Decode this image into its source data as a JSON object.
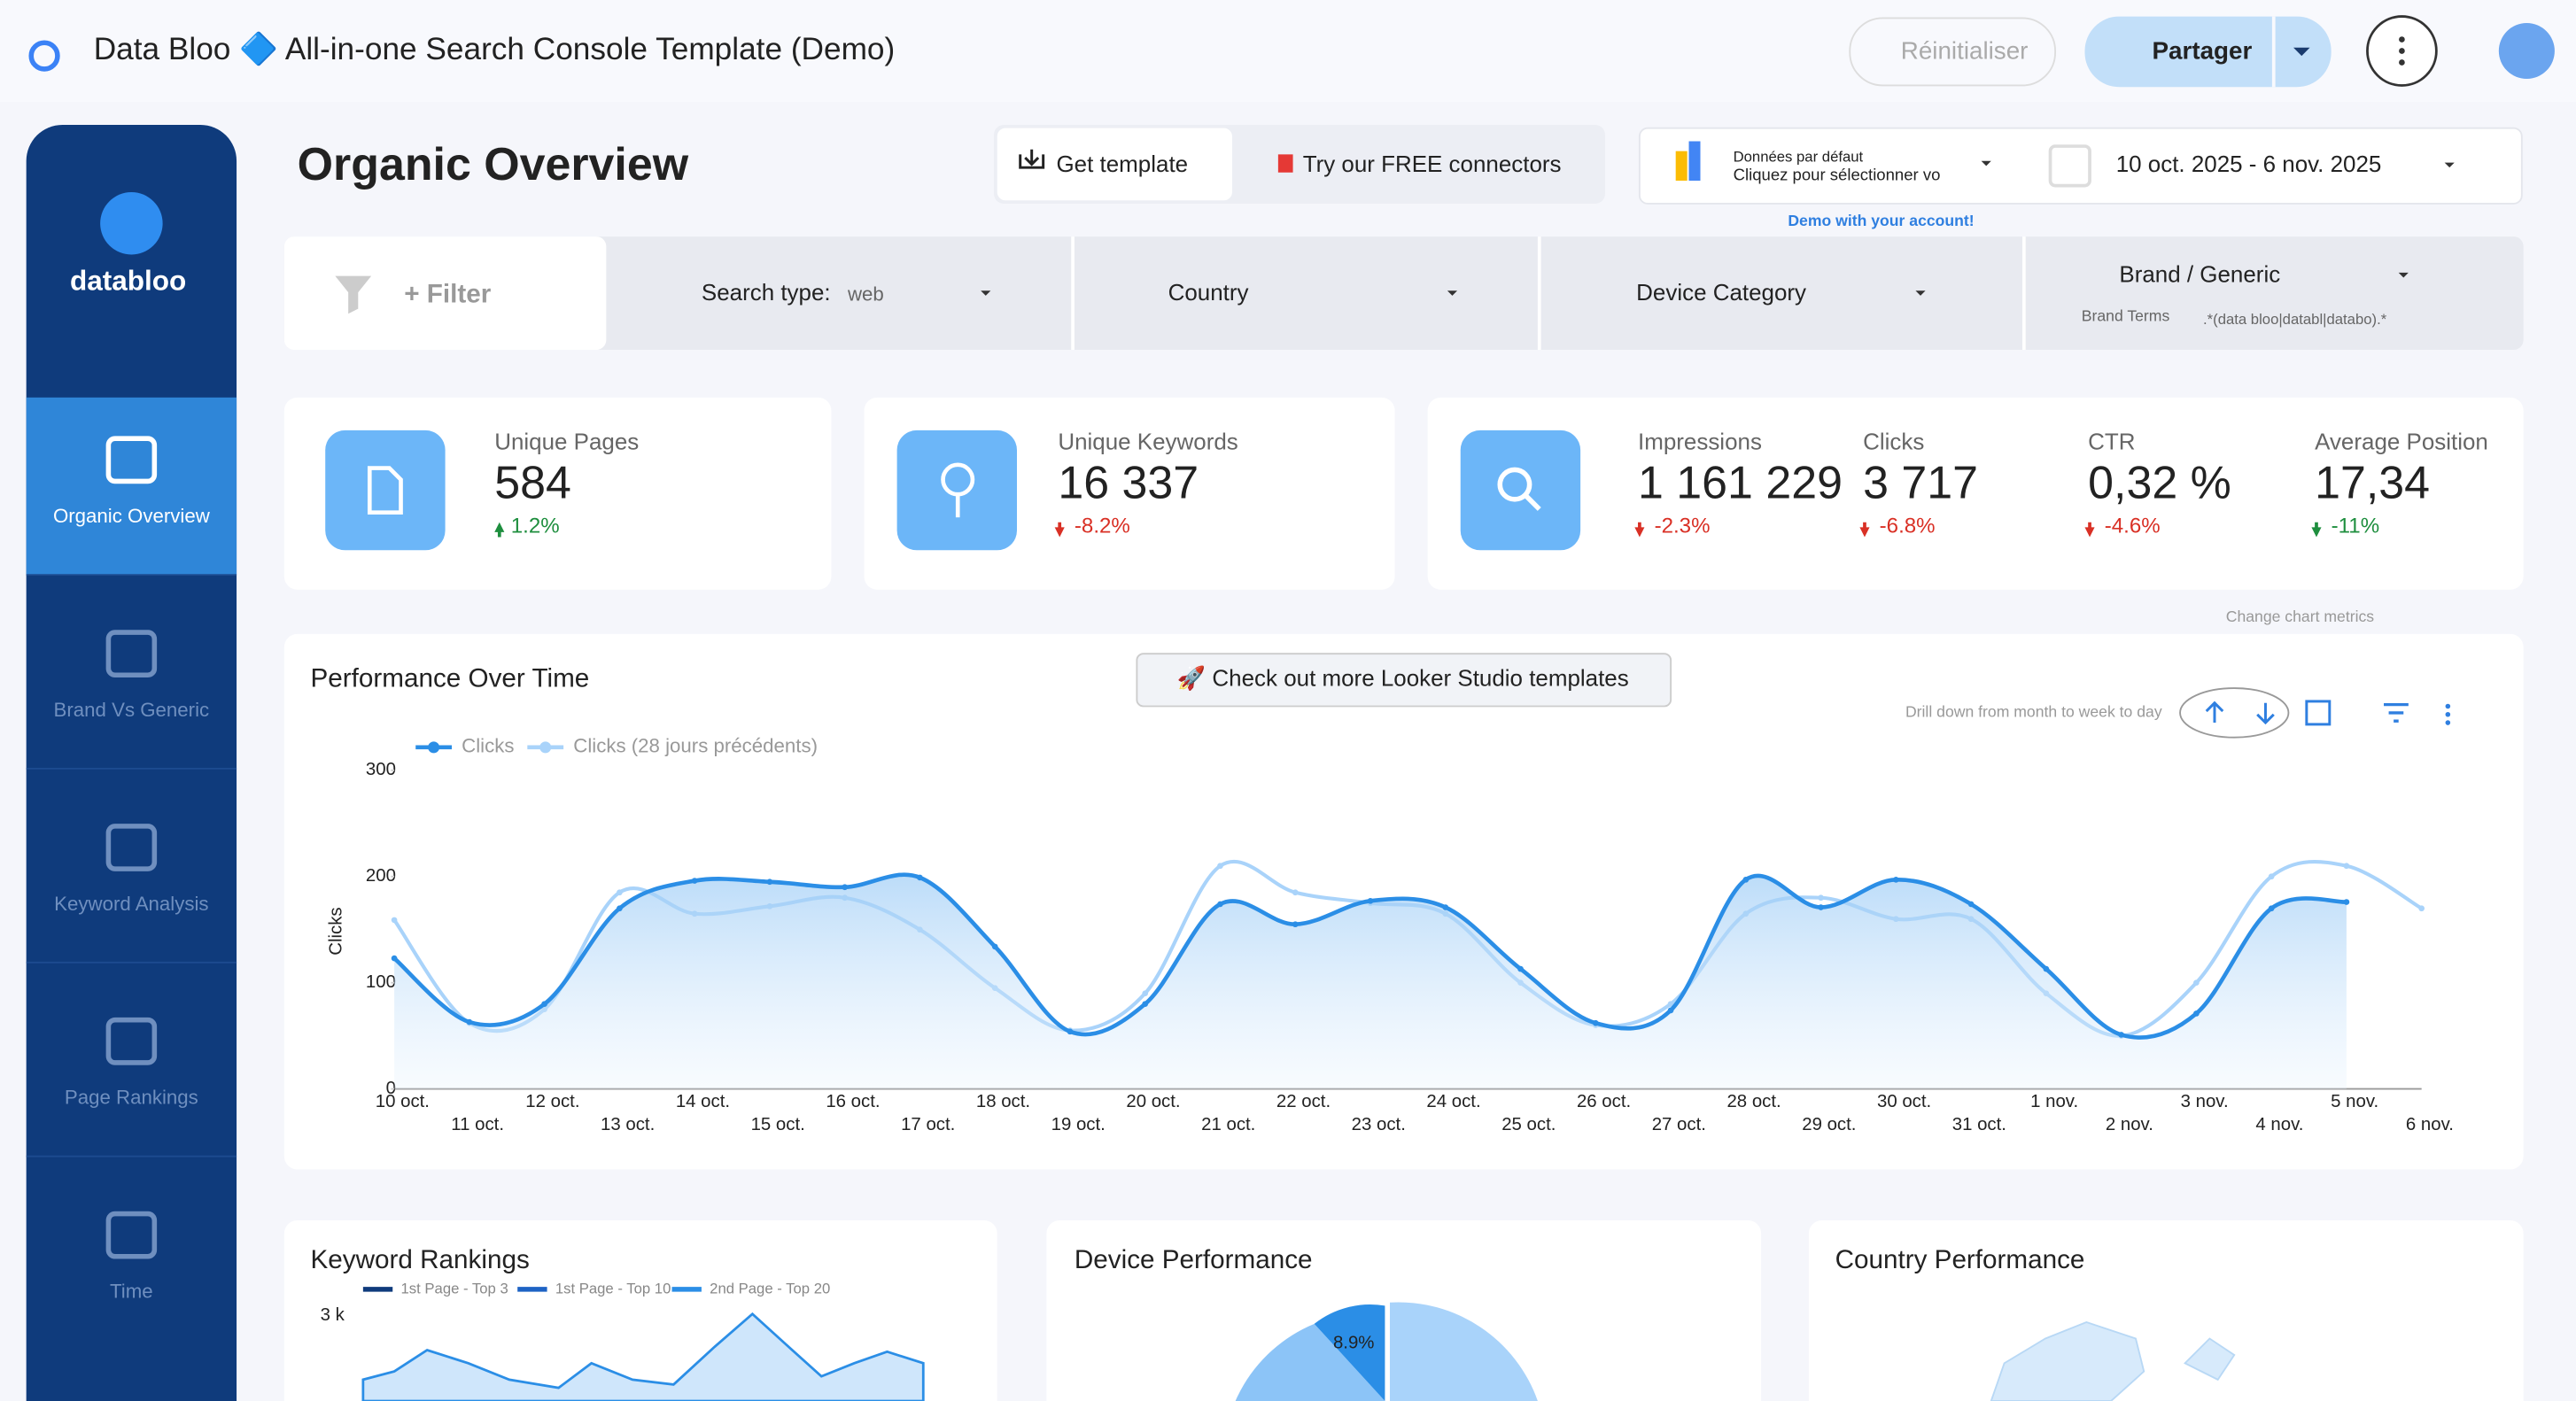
{
  "header": {
    "title": "Data Bloo 🔷 All-in-one Search Console Template (Demo)",
    "reset": "Réinitialiser",
    "share": "Partager"
  },
  "sidebar": {
    "logo": "databloo",
    "items": [
      "Organic Overview",
      "Brand Vs Generic",
      "Keyword Analysis",
      "Page Rankings",
      "Time"
    ]
  },
  "page": {
    "title": "Organic Overview",
    "get_template": "Get template",
    "connectors": "Try our FREE connectors",
    "source_line1": "Données par défaut",
    "source_line2": "Cliquez pour sélectionner vo",
    "demo_note": "Demo with your account!",
    "date_range": "10 oct. 2025 - 6 nov. 2025"
  },
  "filters": {
    "filter": "+ Filter",
    "search_type_label": "Search type:",
    "search_type_value": "web",
    "country": "Country",
    "device": "Device Category",
    "brand": "Brand / Generic",
    "brand_terms": "Brand Terms",
    "brand_regex": ".*(data bloo|databl|databo).*"
  },
  "kpis": [
    {
      "label": "Unique Pages",
      "value": "584",
      "change": "1.2%",
      "trend": "up",
      "color": "#1e8e3e"
    },
    {
      "label": "Unique Keywords",
      "value": "16 337",
      "change": "-8.2%",
      "trend": "down",
      "color": "#d93025"
    },
    {
      "label": "Impressions",
      "value": "1 161 229",
      "change": "-2.3%",
      "trend": "down",
      "color": "#d93025"
    },
    {
      "label": "Clicks",
      "value": "3 717",
      "change": "-6.8%",
      "trend": "down",
      "color": "#d93025"
    },
    {
      "label": "CTR",
      "value": "0,32 %",
      "change": "-4.6%",
      "trend": "down",
      "color": "#d93025"
    },
    {
      "label": "Average Position",
      "value": "17,34",
      "change": "-11%",
      "trend": "down",
      "color": "#1e8e3e"
    }
  ],
  "chart_tools": {
    "cta": "🚀 Check out more Looker Studio templates",
    "drill": "Drill down from month to week to day",
    "change_metrics": "Change chart metrics"
  },
  "chart_data": {
    "type": "line",
    "title": "Performance Over Time",
    "y_label": "Clicks",
    "categories": [
      "10 oct.",
      "11 oct.",
      "12 oct.",
      "13 oct.",
      "14 oct.",
      "15 oct.",
      "16 oct.",
      "17 oct.",
      "18 oct.",
      "19 oct.",
      "20 oct.",
      "21 oct.",
      "22 oct.",
      "23 oct.",
      "24 oct.",
      "25 oct.",
      "26 oct.",
      "27 oct.",
      "28 oct.",
      "29 oct.",
      "30 oct.",
      "31 oct.",
      "1 nov.",
      "2 nov.",
      "3 nov.",
      "4 nov.",
      "5 nov.",
      "6 nov."
    ],
    "series": [
      {
        "name": "Clicks",
        "color": "#2b8ee6",
        "values": [
          123,
          63,
          80,
          170,
          196,
          195,
          190,
          199,
          134,
          54,
          80,
          174,
          155,
          177,
          171,
          113,
          62,
          74,
          197,
          171,
          197,
          174,
          113,
          51,
          71,
          170,
          176,
          null
        ]
      },
      {
        "name": "Clicks (28 jours précédents)",
        "color": "#a9d3fa",
        "values": [
          159,
          62,
          75,
          185,
          165,
          172,
          180,
          150,
          95,
          55,
          90,
          210,
          185,
          175,
          165,
          100,
          60,
          80,
          165,
          180,
          160,
          160,
          90,
          50,
          100,
          200,
          210,
          170
        ]
      }
    ],
    "ylim": [
      0,
      300
    ],
    "yticks": [
      0,
      100,
      200,
      300
    ],
    "grid": false
  },
  "bottom": {
    "keyword_rankings": {
      "title": "Keyword Rankings",
      "legend": [
        "1st Page - Top 3",
        "1st Page - Top 10",
        "2nd Page - Top 20"
      ],
      "tick": "3 k"
    },
    "device": {
      "title": "Device Performance",
      "label": "8.9%"
    },
    "country": {
      "title": "Country Performance"
    }
  }
}
